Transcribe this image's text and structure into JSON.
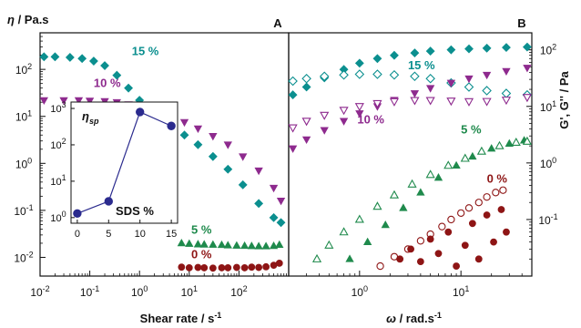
{
  "colors": {
    "c15": "#0b8f8f",
    "c10": "#8e2a8e",
    "c5": "#1f8a4c",
    "c0": "#8e1515",
    "inset": "#2b2b8e",
    "axis": "#111111"
  },
  "chart_data": [
    {
      "panel": "A",
      "type": "scatter",
      "ylabel_sym": "η",
      "ylabel_unit": " / Pa.s",
      "xlabel": "Shear rate / s",
      "xlabel_sup": "-1",
      "xscale": "log",
      "yscale": "log",
      "xlim": [
        0.01,
        1000
      ],
      "ylim": [
        0.004,
        600
      ],
      "xticks": [
        {
          "v": 0.01,
          "b": "10",
          "e": "-2"
        },
        {
          "v": 0.1,
          "b": "10",
          "e": "-1"
        },
        {
          "v": 1,
          "b": "10",
          "e": "0"
        },
        {
          "v": 10,
          "b": "10",
          "e": "1"
        },
        {
          "v": 100,
          "b": "10",
          "e": "2"
        }
      ],
      "yticks": [
        {
          "v": 0.01,
          "b": "10",
          "e": "-2"
        },
        {
          "v": 0.1,
          "b": "10",
          "e": "-1"
        },
        {
          "v": 1,
          "b": "10",
          "e": "0"
        },
        {
          "v": 10,
          "b": "10",
          "e": "1"
        },
        {
          "v": 100,
          "b": "10",
          "e": "2"
        }
      ],
      "series": [
        {
          "name": "15 %",
          "color_key": "c15",
          "marker": "diamond",
          "x": [
            0.012,
            0.02,
            0.04,
            0.07,
            0.12,
            0.2,
            0.35,
            0.6,
            1,
            2,
            4,
            8,
            15,
            30,
            60,
            120,
            250,
            500,
            700
          ],
          "y": [
            185,
            185,
            180,
            170,
            150,
            120,
            75,
            40,
            22,
            12,
            7,
            4,
            2.5,
            1.4,
            0.75,
            0.35,
            0.14,
            0.07,
            0.055
          ]
        },
        {
          "name": "10 %",
          "color_key": "c10",
          "marker": "triangle-down",
          "x": [
            0.012,
            0.03,
            0.06,
            0.1,
            0.2,
            0.35,
            0.6,
            1,
            2,
            4,
            8,
            15,
            30,
            60,
            120,
            250,
            500,
            700
          ],
          "y": [
            22,
            22,
            22,
            21.5,
            21,
            20,
            18,
            16,
            13,
            10,
            7.5,
            5.5,
            3.8,
            2.5,
            1.4,
            0.7,
            0.3,
            0.16
          ]
        },
        {
          "name": "5 %",
          "color_key": "c5",
          "marker": "triangle-up",
          "x": [
            7,
            10,
            15,
            20,
            30,
            45,
            60,
            90,
            130,
            180,
            250,
            350,
            500,
            650
          ],
          "y": [
            0.02,
            0.0195,
            0.019,
            0.0188,
            0.0186,
            0.0184,
            0.018,
            0.0178,
            0.0176,
            0.0174,
            0.0172,
            0.0172,
            0.0175,
            0.0185
          ]
        },
        {
          "name": "0 %",
          "color_key": "c0",
          "marker": "circle",
          "x": [
            7,
            10,
            15,
            20,
            30,
            45,
            60,
            90,
            130,
            180,
            250,
            350,
            500,
            650
          ],
          "y": [
            0.0062,
            0.006,
            0.0061,
            0.006,
            0.0059,
            0.006,
            0.006,
            0.0061,
            0.006,
            0.0062,
            0.0061,
            0.0063,
            0.0068,
            0.0075
          ]
        }
      ],
      "series_labels": [
        {
          "text": "15 %",
          "color_key": "c15",
          "x": 0.7,
          "y": 200
        },
        {
          "text": "10 %",
          "color_key": "c10",
          "x": 0.12,
          "y": 42
        },
        {
          "text": "5 %",
          "color_key": "c5",
          "x": 11,
          "y": 0.032
        },
        {
          "text": "0 %",
          "color_key": "c0",
          "x": 11,
          "y": 0.0095
        }
      ],
      "inset": {
        "ylabel_sym": "η",
        "ylabel_sub": "sp",
        "xlabel": "SDS %",
        "xlim": [
          -1,
          16
        ],
        "ylim": [
          0.7,
          1500
        ],
        "xticks": [
          0,
          5,
          10,
          15
        ],
        "yticks": [
          {
            "v": 1,
            "b": "10",
            "e": "0"
          },
          {
            "v": 10,
            "b": "10",
            "e": "1"
          },
          {
            "v": 100,
            "b": "10",
            "e": "2"
          },
          {
            "v": 1000,
            "b": "10",
            "e": "3"
          }
        ],
        "x": [
          0,
          5,
          10,
          15
        ],
        "y": [
          1.3,
          2.8,
          800,
          330
        ]
      }
    },
    {
      "panel": "B",
      "type": "scatter",
      "ylabel": "G', G'' / Pa",
      "xlabel_sym": "ω",
      "xlabel_unit": " / rad.s",
      "xlabel_sup": "-1",
      "xscale": "log",
      "yscale": "log",
      "xlim": [
        0.2,
        50
      ],
      "ylim": [
        0.01,
        200
      ],
      "xticks": [
        {
          "v": 1,
          "b": "10",
          "e": "0"
        },
        {
          "v": 10,
          "b": "10",
          "e": "1"
        }
      ],
      "yticks": [
        {
          "v": 0.1,
          "b": "10",
          "e": "-1"
        },
        {
          "v": 1,
          "b": "10",
          "e": "0"
        },
        {
          "v": 10,
          "b": "10",
          "e": "1"
        },
        {
          "v": 100,
          "b": "10",
          "e": "2"
        }
      ],
      "series": [
        {
          "name": "15 % G'",
          "color_key": "c15",
          "marker": "diamond",
          "filled": true,
          "x": [
            0.22,
            0.3,
            0.45,
            0.7,
            1,
            1.5,
            2.2,
            3.5,
            5,
            8,
            12,
            18,
            28,
            45
          ],
          "y": [
            16,
            22,
            32,
            45,
            58,
            70,
            80,
            88,
            95,
            100,
            104,
            107,
            110,
            112
          ]
        },
        {
          "name": "15 % G''",
          "color_key": "c15",
          "marker": "diamond",
          "filled": false,
          "x": [
            0.22,
            0.3,
            0.45,
            0.7,
            1,
            1.5,
            2.2,
            3.5,
            5,
            8,
            12,
            18,
            28,
            45
          ],
          "y": [
            28,
            31,
            34,
            36,
            37,
            37,
            36,
            34,
            31,
            26,
            22,
            19,
            17,
            16
          ]
        },
        {
          "name": "10 % G'",
          "color_key": "c10",
          "marker": "triangle-down",
          "filled": true,
          "x": [
            0.22,
            0.3,
            0.45,
            0.7,
            1,
            1.5,
            2.2,
            3.5,
            5,
            8,
            12,
            18,
            28,
            45
          ],
          "y": [
            1.8,
            2.6,
            3.8,
            5.5,
            7.5,
            10,
            13,
            17,
            21,
            26,
            31,
            36,
            42,
            48
          ]
        },
        {
          "name": "10 % G''",
          "color_key": "c10",
          "marker": "triangle-down",
          "filled": false,
          "x": [
            0.22,
            0.3,
            0.45,
            0.7,
            1,
            1.5,
            2.2,
            3.5,
            5,
            8,
            12,
            18,
            28,
            45
          ],
          "y": [
            4.2,
            5.5,
            7,
            8.6,
            10,
            11.3,
            12.2,
            12.8,
            12.8,
            12.5,
            12.2,
            12.3,
            13,
            14.5
          ]
        },
        {
          "name": "5 % G'",
          "color_key": "c5",
          "marker": "triangle-up",
          "filled": true,
          "x": [
            0.8,
            1.2,
            1.8,
            2.7,
            4,
            6,
            9,
            13,
            20,
            30,
            42
          ],
          "y": [
            0.02,
            0.04,
            0.08,
            0.16,
            0.3,
            0.55,
            0.9,
            1.3,
            1.8,
            2.2,
            2.5
          ]
        },
        {
          "name": "5 % G''",
          "color_key": "c5",
          "marker": "triangle-up",
          "filled": false,
          "x": [
            0.38,
            0.5,
            0.7,
            1,
            1.5,
            2.2,
            3.3,
            5,
            7.5,
            11,
            16,
            24,
            35,
            45
          ],
          "y": [
            0.02,
            0.035,
            0.06,
            0.1,
            0.17,
            0.27,
            0.42,
            0.62,
            0.9,
            1.2,
            1.6,
            2,
            2.3,
            2.4
          ]
        },
        {
          "name": "0 % G''",
          "color_key": "c0",
          "marker": "circle",
          "filled": false,
          "x": [
            1.6,
            2.2,
            3,
            4,
            5,
            6.5,
            8,
            10,
            12,
            15,
            18,
            22,
            26
          ],
          "y": [
            0.015,
            0.022,
            0.03,
            0.042,
            0.055,
            0.075,
            0.1,
            0.13,
            0.16,
            0.2,
            0.25,
            0.3,
            0.33
          ]
        },
        {
          "name": "0 % G'",
          "color_key": "c0",
          "marker": "circle",
          "filled": true,
          "x": [
            2.5,
            3.2,
            4,
            5,
            6,
            7.5,
            9,
            11,
            13,
            15,
            18,
            21,
            25,
            28
          ],
          "y": [
            0.02,
            0.03,
            0.018,
            0.045,
            0.025,
            0.06,
            0.015,
            0.035,
            0.085,
            0.02,
            0.12,
            0.04,
            0.15,
            0.06
          ]
        }
      ],
      "series_labels": [
        {
          "text": "15 %",
          "color_key": "c15",
          "x": 3,
          "y": 45
        },
        {
          "text": "10 %",
          "color_key": "c10",
          "x": 0.95,
          "y": 5
        },
        {
          "text": "5 %",
          "color_key": "c5",
          "x": 10,
          "y": 3.3
        },
        {
          "text": "0 %",
          "color_key": "c0",
          "x": 18,
          "y": 0.45
        }
      ]
    }
  ],
  "panels": {
    "a_label": "A",
    "b_label": "B"
  }
}
